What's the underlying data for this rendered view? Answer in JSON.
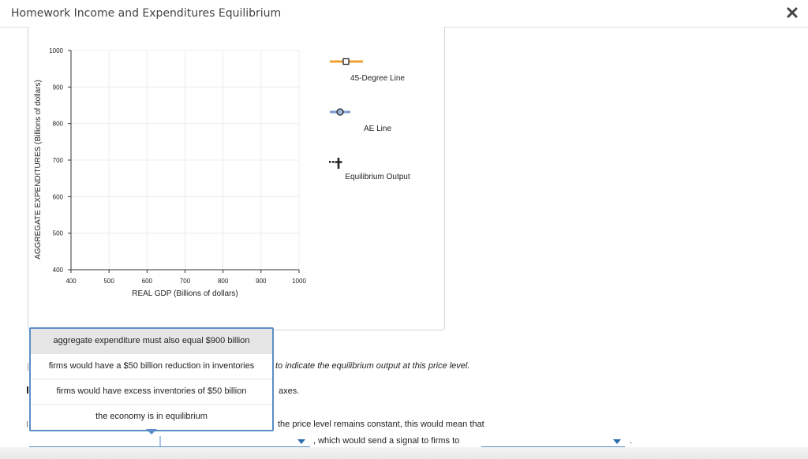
{
  "window": {
    "title": "Homework Income and Expenditures Equilibrium",
    "close_icon": "close-x-icon"
  },
  "graph": {
    "y_axis_label": "AGGREGATE EXPENDITURES (Billions of dollars)",
    "x_axis_label": "REAL GDP (Billions of dollars)",
    "y_ticks": [
      "1000",
      "900",
      "800",
      "700",
      "600",
      "500",
      "400"
    ],
    "x_ticks": [
      "400",
      "500",
      "600",
      "700",
      "800",
      "900",
      "1000"
    ]
  },
  "legend": {
    "items": [
      {
        "label": "45-Degree Line",
        "icon": "orange-line-square-icon",
        "color": "#f0a030"
      },
      {
        "label": "AE Line",
        "icon": "blue-line-circle-icon",
        "color": "#7a9cc9"
      },
      {
        "label": "Equilibrium Output",
        "icon": "black-dotted-plus-icon",
        "color": "#222222"
      }
    ]
  },
  "question": {
    "line1_text": "to indicate the equilibrium output at this price level.",
    "line2_text": "axes.",
    "line3_text": "the price level remains constant, this would mean that",
    "line4_text": ", which would send a signal to firms to",
    "line4_end": "."
  },
  "dropdown": {
    "options": [
      "aggregate expenditure must also equal $900 billion",
      "firms would have a $50 billion reduction in inventories",
      "firms would have excess inventories of $50 billion",
      "the economy is in equilibrium"
    ],
    "highlighted_index": 0
  },
  "colors": {
    "accent": "#5b8ec7",
    "caret": "#2b6cb0"
  }
}
